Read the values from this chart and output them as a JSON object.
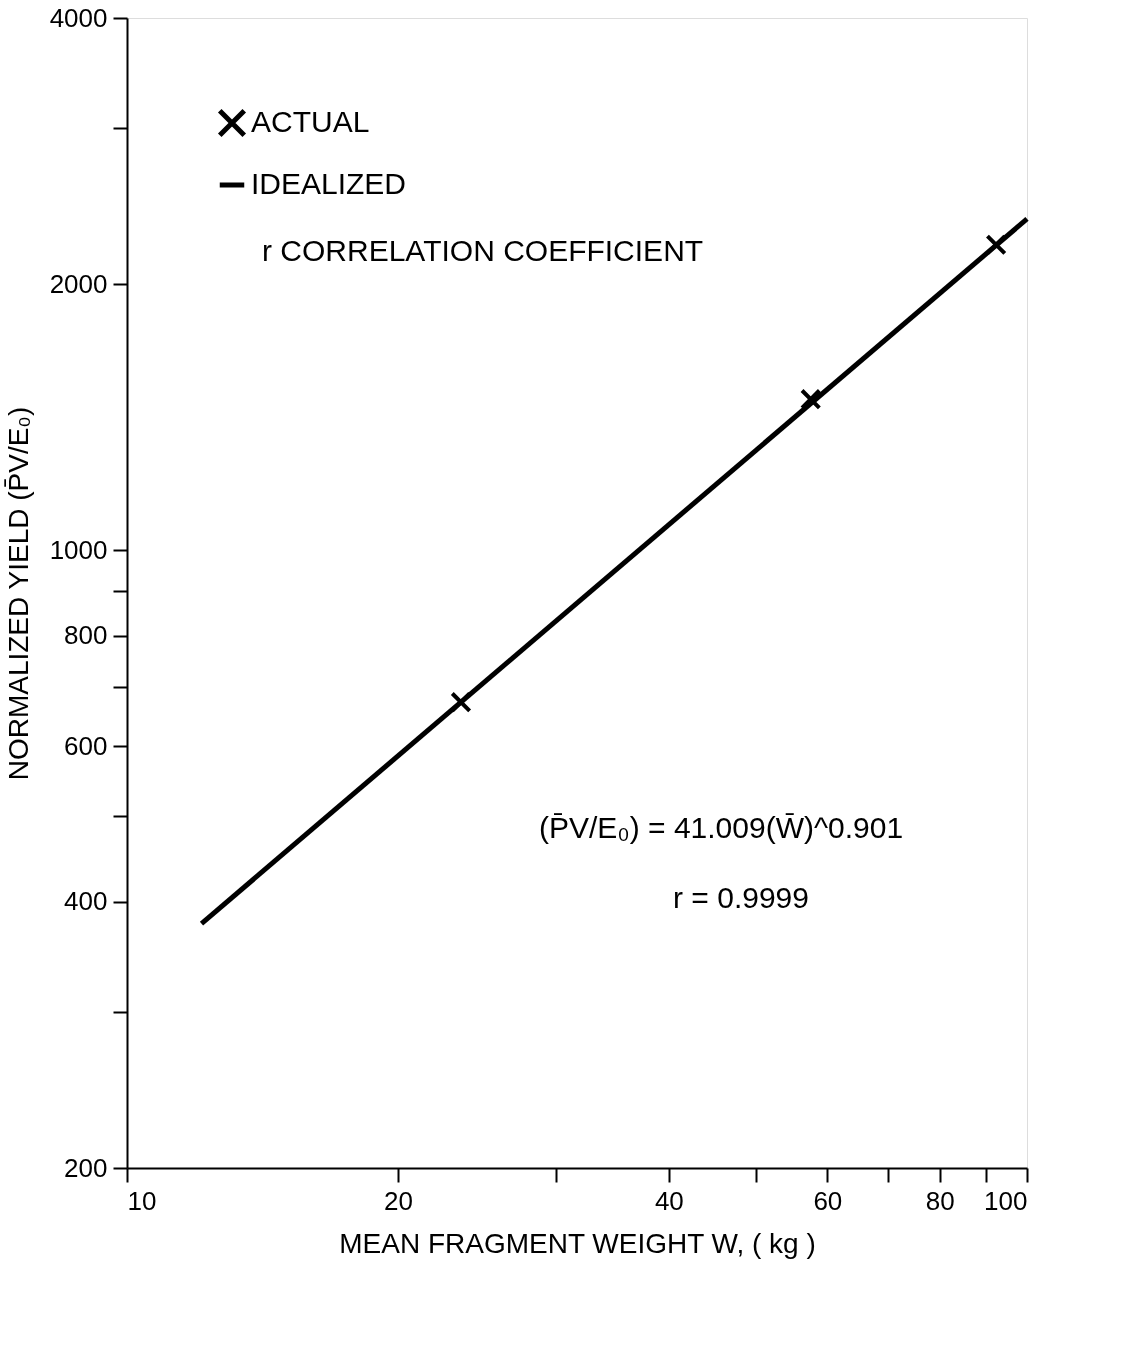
{
  "chart_data": {
    "type": "scatter",
    "xlabel": "MEAN FRAGMENT WEIGHT W, ( kg )",
    "ylabel": "NORMALIZED YIELD (P̄V/E₀)",
    "log": "xy",
    "xlim": [
      10,
      100
    ],
    "ylim": [
      200,
      4000
    ],
    "xticks": [
      10,
      20,
      {
        "value": 30,
        "label": null
      },
      40,
      {
        "value": 50,
        "label": null
      },
      60,
      {
        "value": 70,
        "label": null
      },
      80,
      {
        "value": 90,
        "label": null
      },
      100
    ],
    "yticks": [
      200,
      {
        "value": 300,
        "label": null
      },
      400,
      {
        "value": 500,
        "label": null
      },
      600,
      {
        "value": 700,
        "label": null
      },
      800,
      {
        "value": 900,
        "label": null
      },
      1000,
      2000,
      {
        "value": 3000,
        "label": null
      },
      4000
    ],
    "grid": false,
    "legend": "top left",
    "series": [
      {
        "name": "ACTUAL",
        "color": "#000000",
        "marker": "cross",
        "x": [
          23.5,
          57.5,
          92.4
        ],
        "values": [
          673,
          1482,
          2216
        ]
      },
      {
        "name": "IDEALIZED",
        "type": "line",
        "color": "#000000",
        "line_style": "solid",
        "x": [
          12.1,
          100
        ],
        "values": [
          378,
          2370
        ]
      }
    ],
    "annotations": [
      "r    CORRELATION COEFFICIENT",
      "(P̄V/E₀) = 41.009(W̄)^0.901",
      "r = 0.9999"
    ]
  }
}
